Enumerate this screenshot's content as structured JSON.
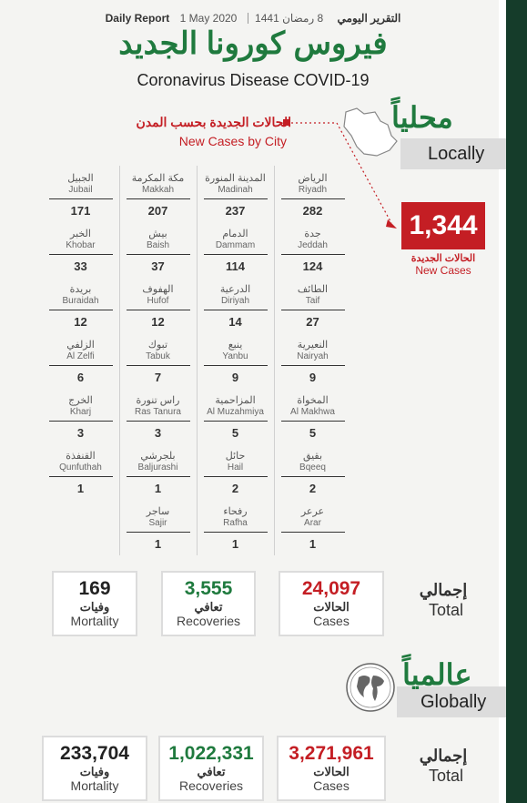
{
  "header": {
    "daily_report_en": "Daily Report",
    "date_gregorian": "1 May 2020",
    "date_hijri": "8 رمضان 1441",
    "daily_report_ar": "التقرير اليومي",
    "title_ar": "فيروس كورونا الجديد",
    "title_en": "Coronavirus Disease COVID-19"
  },
  "local": {
    "label_ar": "محلياً",
    "label_en": "Locally",
    "city_header_ar": "الحالات الجديدة بحسب المدن",
    "city_header_en": "New Cases by City",
    "new_cases_value": "1,344",
    "new_cases_ar": "الحالات الجديدة",
    "new_cases_en": "New Cases",
    "cities": [
      {
        "ar": "الرياض",
        "en": "Riyadh",
        "value": "282"
      },
      {
        "ar": "المدينة المنورة",
        "en": "Madinah",
        "value": "237"
      },
      {
        "ar": "مكة المكرمة",
        "en": "Makkah",
        "value": "207"
      },
      {
        "ar": "الجبيل",
        "en": "Jubail",
        "value": "171"
      },
      {
        "ar": "جدة",
        "en": "Jeddah",
        "value": "124"
      },
      {
        "ar": "الدمام",
        "en": "Dammam",
        "value": "114"
      },
      {
        "ar": "بيش",
        "en": "Baish",
        "value": "37"
      },
      {
        "ar": "الخبر",
        "en": "Khobar",
        "value": "33"
      },
      {
        "ar": "الطائف",
        "en": "Taif",
        "value": "27"
      },
      {
        "ar": "الدرعية",
        "en": "Diriyah",
        "value": "14"
      },
      {
        "ar": "الهفوف",
        "en": "Hufof",
        "value": "12"
      },
      {
        "ar": "بريدة",
        "en": "Buraidah",
        "value": "12"
      },
      {
        "ar": "النعيرية",
        "en": "Nairyah",
        "value": "9"
      },
      {
        "ar": "ينبع",
        "en": "Yanbu",
        "value": "9"
      },
      {
        "ar": "تبوك",
        "en": "Tabuk",
        "value": "7"
      },
      {
        "ar": "الزلفي",
        "en": "Al Zelfi",
        "value": "6"
      },
      {
        "ar": "المخواة",
        "en": "Al Makhwa",
        "value": "5"
      },
      {
        "ar": "المزاحمية",
        "en": "Al Muzahmiya",
        "value": "5"
      },
      {
        "ar": "راس تنورة",
        "en": "Ras Tanura",
        "value": "3"
      },
      {
        "ar": "الخرج",
        "en": "Kharj",
        "value": "3"
      },
      {
        "ar": "بقيق",
        "en": "Bqeeq",
        "value": "2"
      },
      {
        "ar": "حائل",
        "en": "Hail",
        "value": "2"
      },
      {
        "ar": "بلجرشي",
        "en": "Baljurashi",
        "value": "1"
      },
      {
        "ar": "القنفذة",
        "en": "Qunfuthah",
        "value": "1"
      },
      {
        "ar": "عرعر",
        "en": "Arar",
        "value": "1"
      },
      {
        "ar": "رفحاء",
        "en": "Rafha",
        "value": "1"
      },
      {
        "ar": "ساجر",
        "en": "Sajir",
        "value": "1"
      }
    ],
    "total": {
      "label_ar": "إجمالي",
      "label_en": "Total",
      "cases": {
        "value": "24,097",
        "ar": "الحالات",
        "en": "Cases"
      },
      "recoveries": {
        "value": "3,555",
        "ar": "تعافي",
        "en": "Recoveries"
      },
      "mortality": {
        "value": "169",
        "ar": "وفيات",
        "en": "Mortality"
      }
    }
  },
  "global": {
    "label_ar": "عالمياً",
    "label_en": "Globally",
    "total": {
      "label_ar": "إجمالي",
      "label_en": "Total",
      "cases": {
        "value": "3,271,961",
        "ar": "الحالات",
        "en": "Cases"
      },
      "recoveries": {
        "value": "1,022,331",
        "ar": "تعافي",
        "en": "Recoveries"
      },
      "mortality": {
        "value": "233,704",
        "ar": "وفيات",
        "en": "Mortality"
      }
    }
  },
  "colors": {
    "green": "#1f7a3e",
    "red": "#c41e24",
    "dark_green": "#153c2a"
  },
  "icons": [
    "saudi-map-icon",
    "globe-icon"
  ]
}
